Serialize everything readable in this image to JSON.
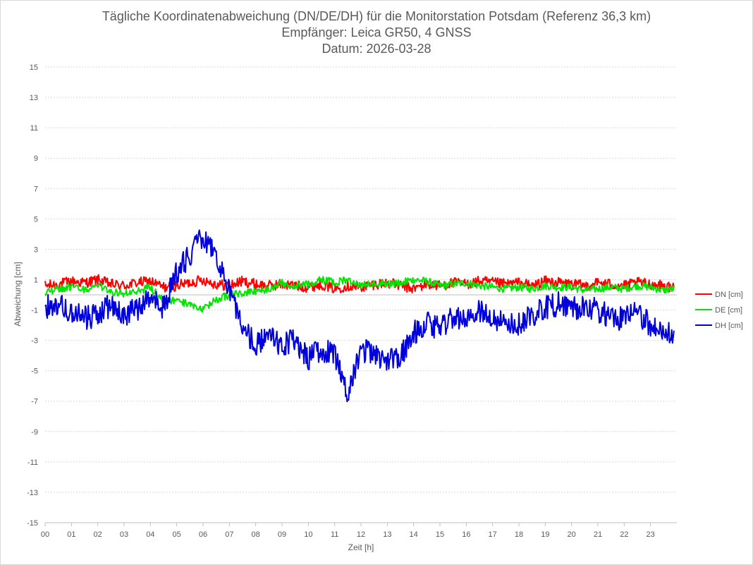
{
  "chart_data": {
    "type": "line",
    "title": "Tägliche Koordinatenabweichung (DN/DE/DH) für die Monitorstation Potsdam (Referenz 36,3 km)",
    "subtitle_1": "Empfänger: Leica GR50, 4 GNSS",
    "subtitle_2": "Datum: 2026-03-28",
    "xlabel": "Zeit [h]",
    "ylabel": "Abweichung [cm]",
    "xlim": [
      0,
      24
    ],
    "ylim": [
      -15,
      15
    ],
    "x_ticks": [
      "00",
      "01",
      "02",
      "03",
      "04",
      "05",
      "06",
      "07",
      "08",
      "09",
      "10",
      "11",
      "12",
      "13",
      "14",
      "15",
      "16",
      "17",
      "18",
      "19",
      "20",
      "21",
      "22",
      "23"
    ],
    "y_ticks": [
      15,
      13,
      11,
      9,
      7,
      5,
      3,
      1,
      -1,
      -3,
      -5,
      -7,
      -9,
      -11,
      -13,
      -15
    ],
    "grid": "horizontal dotted",
    "legend_position": "right",
    "sample_interval_h": 0.5,
    "x": [
      0,
      0.5,
      1,
      1.5,
      2,
      2.5,
      3,
      3.5,
      4,
      4.5,
      5,
      5.5,
      6,
      6.5,
      7,
      7.5,
      8,
      8.5,
      9,
      9.5,
      10,
      10.5,
      11,
      11.5,
      12,
      12.5,
      13,
      13.5,
      14,
      14.5,
      15,
      15.5,
      16,
      16.5,
      17,
      17.5,
      18,
      18.5,
      19,
      19.5,
      20,
      20.5,
      21,
      21.5,
      22,
      22.5,
      23,
      23.5,
      23.9
    ],
    "series": [
      {
        "name": "DN [cm]",
        "color": "#ff0000",
        "values": [
          0.6,
          0.7,
          0.9,
          0.8,
          1.0,
          0.7,
          0.6,
          0.8,
          0.9,
          0.5,
          0.6,
          0.8,
          1.0,
          0.7,
          0.6,
          0.9,
          0.7,
          0.6,
          0.7,
          0.6,
          0.5,
          0.7,
          0.4,
          0.6,
          0.5,
          0.7,
          0.8,
          0.6,
          0.4,
          0.7,
          0.6,
          0.8,
          0.7,
          0.9,
          0.8,
          0.7,
          0.8,
          0.6,
          0.9,
          0.8,
          0.7,
          0.6,
          0.8,
          0.7,
          0.6,
          0.8,
          0.7,
          0.6,
          0.5
        ]
      },
      {
        "name": "DE [cm]",
        "color": "#00e600",
        "values": [
          0.2,
          0.4,
          0.5,
          0.3,
          0.6,
          0.2,
          0.1,
          0.2,
          0.5,
          -0.4,
          -0.4,
          -0.6,
          -1.0,
          -0.3,
          0.0,
          0.1,
          0.2,
          0.4,
          0.8,
          0.6,
          0.7,
          1.0,
          0.8,
          1.0,
          0.6,
          0.8,
          0.7,
          0.8,
          1.0,
          0.9,
          0.6,
          0.7,
          0.8,
          0.6,
          0.5,
          0.4,
          0.5,
          0.4,
          0.6,
          0.5,
          0.5,
          0.3,
          0.4,
          0.5,
          0.4,
          0.6,
          0.5,
          0.3,
          0.4
        ]
      },
      {
        "name": "DH [cm]",
        "color": "#0000dd",
        "values": [
          -0.8,
          -0.5,
          -1.2,
          -1.5,
          -1.4,
          -0.6,
          -1.3,
          -0.9,
          -0.3,
          -0.8,
          1.5,
          2.6,
          3.8,
          2.6,
          0.4,
          -2.3,
          -3.2,
          -2.8,
          -3.3,
          -3.0,
          -4.2,
          -3.6,
          -4.0,
          -6.4,
          -3.6,
          -3.9,
          -4.2,
          -4.0,
          -2.5,
          -1.9,
          -2.2,
          -1.4,
          -1.8,
          -1.0,
          -1.5,
          -1.9,
          -2.0,
          -1.3,
          -0.9,
          -0.6,
          -0.9,
          -0.8,
          -1.0,
          -1.5,
          -1.6,
          -1.2,
          -2.0,
          -2.4,
          -2.5
        ]
      }
    ]
  }
}
